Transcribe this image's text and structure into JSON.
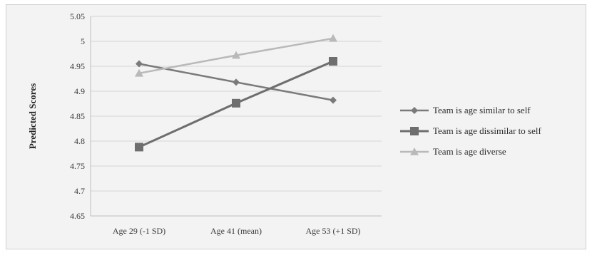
{
  "chart_data": {
    "type": "line",
    "title": "",
    "xlabel": "",
    "ylabel": "Predicted Scores",
    "ylim": [
      4.65,
      5.05
    ],
    "ystep": 0.05,
    "yticks": [
      "4.65",
      "4.7",
      "4.75",
      "4.8",
      "4.85",
      "4.9",
      "4.95",
      "5",
      "5.05"
    ],
    "grid": true,
    "legend_position": "right",
    "categories": [
      "Age 29 (-1 SD)",
      "Age 41 (mean)",
      "Age 53 (+1 SD)"
    ],
    "series": [
      {
        "name": "Team is age similar to self",
        "values": [
          4.955,
          4.918,
          4.882
        ],
        "color": "#7a7a7a",
        "marker": "diamond"
      },
      {
        "name": "Team is age dissimilar to self",
        "values": [
          4.788,
          4.876,
          4.96
        ],
        "color": "#6e6e6e",
        "marker": "square"
      },
      {
        "name": "Team is age diverse",
        "values": [
          4.936,
          4.972,
          5.006
        ],
        "color": "#b9b9b9",
        "marker": "triangle"
      }
    ]
  }
}
